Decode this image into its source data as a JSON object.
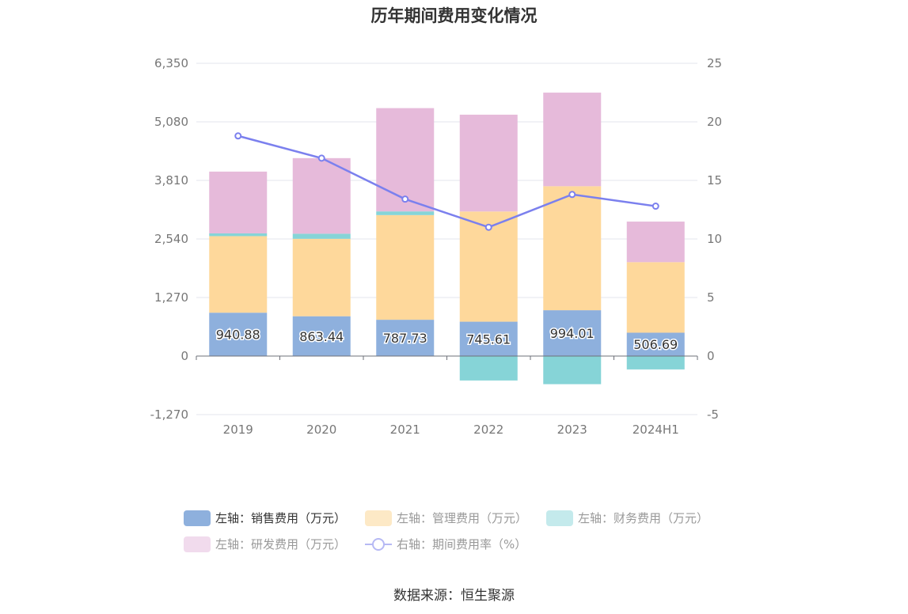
{
  "title": "历年期间费用变化情况",
  "source": "数据来源：恒生聚源",
  "chart_data": {
    "type": "bar",
    "stacked": true,
    "categories": [
      "2019",
      "2020",
      "2021",
      "2022",
      "2023",
      "2024H1"
    ],
    "left_axis": {
      "min": -1270,
      "max": 6350,
      "ticks": [
        -1270,
        0,
        1270,
        2540,
        3810,
        5080,
        6350
      ],
      "tick_labels": [
        "-1,270",
        "0",
        "1,270",
        "2,540",
        "3,810",
        "5,080",
        "6,350"
      ]
    },
    "right_axis": {
      "min": -5,
      "max": 25,
      "ticks": [
        -5,
        0,
        5,
        10,
        15,
        20,
        25
      ],
      "tick_labels": [
        "-5",
        "0",
        "5",
        "10",
        "15",
        "20",
        "25"
      ]
    },
    "series": [
      {
        "name": "左轴：销售费用（万元）",
        "axis": "left",
        "kind": "bar",
        "color": "#8eb0dd",
        "values": [
          940.88,
          863.44,
          787.73,
          745.61,
          994.01,
          506.69
        ],
        "show_labels": true
      },
      {
        "name": "左轴：管理费用（万元）",
        "axis": "left",
        "kind": "bar",
        "color": "#fed89b",
        "values": [
          1660,
          1680,
          2270,
          2390,
          2690,
          1530
        ]
      },
      {
        "name": "左轴：财务费用（万元）",
        "axis": "left",
        "kind": "bar",
        "color": "#86d4d7",
        "values": [
          60,
          110,
          80,
          -530,
          -610,
          -290
        ]
      },
      {
        "name": "左轴：研发费用（万元）",
        "axis": "left",
        "kind": "bar",
        "color": "#e6bada",
        "values": [
          1340,
          1640,
          2240,
          2100,
          2030,
          880
        ]
      },
      {
        "name": "右轴：期间费用率（%）",
        "axis": "right",
        "kind": "line",
        "color": "#7b80ee",
        "values": [
          18.8,
          16.9,
          13.4,
          11.0,
          13.8,
          12.8
        ]
      }
    ],
    "legend_position": "bottom",
    "grid": true
  }
}
